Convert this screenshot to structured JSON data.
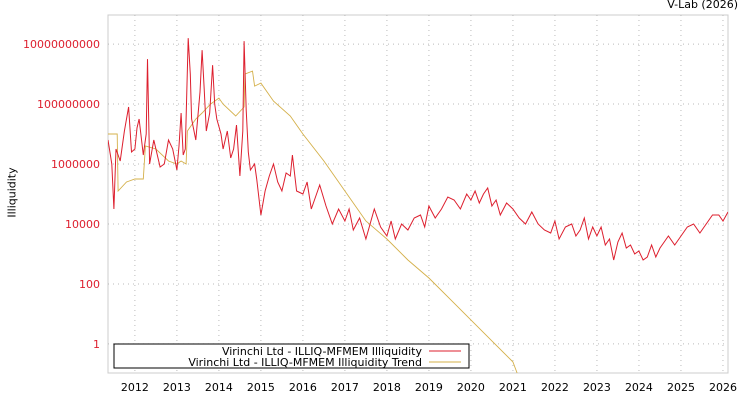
{
  "credit": "V-Lab (2026)",
  "chart_data": {
    "type": "line",
    "title": "",
    "xlabel": "",
    "ylabel": "Illiquidity",
    "yscale": "log",
    "xlim": [
      2011.36,
      2026.12
    ],
    "ylim_log10": [
      -0.97,
      10.97
    ],
    "grid": true,
    "legend_position": "bottom-left",
    "x_ticks": [
      "2012",
      "2013",
      "2014",
      "2015",
      "2016",
      "2017",
      "2018",
      "2019",
      "2020",
      "2021",
      "2022",
      "2023",
      "2024",
      "2025",
      "2026"
    ],
    "y_ticks": [
      {
        "label": "10000000000",
        "log10": 10
      },
      {
        "label": "100000000",
        "log10": 8
      },
      {
        "label": "1000000",
        "log10": 6
      },
      {
        "label": "10000",
        "log10": 4
      },
      {
        "label": "100",
        "log10": 2
      },
      {
        "label": "1",
        "log10": 0
      }
    ],
    "series": [
      {
        "name": "Virinchi Ltd - ILLIQ-MFMEM Illiquidity",
        "color": "#dd1f2e",
        "points_year_log10": [
          [
            2011.36,
            6.8
          ],
          [
            2011.45,
            6.0
          ],
          [
            2011.5,
            4.5
          ],
          [
            2011.55,
            6.5
          ],
          [
            2011.65,
            6.1
          ],
          [
            2011.75,
            7.1
          ],
          [
            2011.85,
            7.9
          ],
          [
            2011.92,
            6.4
          ],
          [
            2012.0,
            6.5
          ],
          [
            2012.05,
            7.2
          ],
          [
            2012.1,
            7.5
          ],
          [
            2012.2,
            6.3
          ],
          [
            2012.27,
            7.0
          ],
          [
            2012.3,
            9.5
          ],
          [
            2012.35,
            6.0
          ],
          [
            2012.45,
            6.8
          ],
          [
            2012.5,
            6.5
          ],
          [
            2012.6,
            5.9
          ],
          [
            2012.7,
            6.0
          ],
          [
            2012.8,
            6.8
          ],
          [
            2012.9,
            6.5
          ],
          [
            2013.0,
            5.8
          ],
          [
            2013.05,
            6.6
          ],
          [
            2013.1,
            7.7
          ],
          [
            2013.15,
            6.3
          ],
          [
            2013.2,
            6.5
          ],
          [
            2013.27,
            10.2
          ],
          [
            2013.32,
            9.0
          ],
          [
            2013.35,
            7.5
          ],
          [
            2013.45,
            6.8
          ],
          [
            2013.55,
            8.4
          ],
          [
            2013.6,
            9.8
          ],
          [
            2013.65,
            8.5
          ],
          [
            2013.7,
            7.1
          ],
          [
            2013.78,
            7.7
          ],
          [
            2013.85,
            9.3
          ],
          [
            2013.9,
            8.0
          ],
          [
            2013.95,
            7.5
          ],
          [
            2014.05,
            7.0
          ],
          [
            2014.1,
            6.5
          ],
          [
            2014.2,
            7.1
          ],
          [
            2014.28,
            6.2
          ],
          [
            2014.35,
            6.5
          ],
          [
            2014.42,
            7.3
          ],
          [
            2014.5,
            5.6
          ],
          [
            2014.57,
            7.1
          ],
          [
            2014.6,
            10.1
          ],
          [
            2014.65,
            7.8
          ],
          [
            2014.7,
            6.4
          ],
          [
            2014.75,
            5.8
          ],
          [
            2014.85,
            6.0
          ],
          [
            2014.9,
            5.5
          ],
          [
            2015.0,
            4.3
          ],
          [
            2015.1,
            5.1
          ],
          [
            2015.2,
            5.6
          ],
          [
            2015.3,
            6.0
          ],
          [
            2015.4,
            5.4
          ],
          [
            2015.5,
            5.1
          ],
          [
            2015.6,
            5.7
          ],
          [
            2015.7,
            5.6
          ],
          [
            2015.75,
            6.3
          ],
          [
            2015.85,
            5.1
          ],
          [
            2016.0,
            5.0
          ],
          [
            2016.1,
            5.4
          ],
          [
            2016.2,
            4.5
          ],
          [
            2016.3,
            4.9
          ],
          [
            2016.4,
            5.3
          ],
          [
            2016.55,
            4.6
          ],
          [
            2016.7,
            4.0
          ],
          [
            2016.85,
            4.5
          ],
          [
            2017.0,
            4.1
          ],
          [
            2017.1,
            4.5
          ],
          [
            2017.2,
            3.8
          ],
          [
            2017.35,
            4.2
          ],
          [
            2017.5,
            3.5
          ],
          [
            2017.6,
            4.0
          ],
          [
            2017.7,
            4.5
          ],
          [
            2017.85,
            3.9
          ],
          [
            2018.0,
            3.6
          ],
          [
            2018.1,
            4.1
          ],
          [
            2018.2,
            3.5
          ],
          [
            2018.35,
            4.0
          ],
          [
            2018.5,
            3.8
          ],
          [
            2018.65,
            4.2
          ],
          [
            2018.8,
            4.3
          ],
          [
            2018.9,
            3.9
          ],
          [
            2019.0,
            4.6
          ],
          [
            2019.15,
            4.2
          ],
          [
            2019.3,
            4.5
          ],
          [
            2019.45,
            4.9
          ],
          [
            2019.6,
            4.8
          ],
          [
            2019.75,
            4.5
          ],
          [
            2019.9,
            5.0
          ],
          [
            2020.0,
            4.8
          ],
          [
            2020.1,
            5.1
          ],
          [
            2020.2,
            4.7
          ],
          [
            2020.3,
            5.0
          ],
          [
            2020.4,
            5.2
          ],
          [
            2020.5,
            4.6
          ],
          [
            2020.6,
            4.8
          ],
          [
            2020.7,
            4.3
          ],
          [
            2020.85,
            4.7
          ],
          [
            2021.0,
            4.5
          ],
          [
            2021.15,
            4.2
          ],
          [
            2021.3,
            4.0
          ],
          [
            2021.45,
            4.4
          ],
          [
            2021.6,
            4.0
          ],
          [
            2021.75,
            3.8
          ],
          [
            2021.9,
            3.7
          ],
          [
            2022.0,
            4.1
          ],
          [
            2022.1,
            3.5
          ],
          [
            2022.25,
            3.9
          ],
          [
            2022.4,
            4.0
          ],
          [
            2022.5,
            3.6
          ],
          [
            2022.6,
            3.8
          ],
          [
            2022.7,
            4.2
          ],
          [
            2022.8,
            3.5
          ],
          [
            2022.9,
            3.9
          ],
          [
            2023.0,
            3.6
          ],
          [
            2023.1,
            3.9
          ],
          [
            2023.2,
            3.3
          ],
          [
            2023.3,
            3.5
          ],
          [
            2023.4,
            2.8
          ],
          [
            2023.5,
            3.4
          ],
          [
            2023.6,
            3.7
          ],
          [
            2023.7,
            3.2
          ],
          [
            2023.8,
            3.3
          ],
          [
            2023.9,
            3.0
          ],
          [
            2024.0,
            3.1
          ],
          [
            2024.1,
            2.8
          ],
          [
            2024.2,
            2.9
          ],
          [
            2024.3,
            3.3
          ],
          [
            2024.4,
            2.9
          ],
          [
            2024.5,
            3.2
          ],
          [
            2024.6,
            3.4
          ],
          [
            2024.7,
            3.6
          ],
          [
            2024.85,
            3.3
          ],
          [
            2025.0,
            3.6
          ],
          [
            2025.15,
            3.9
          ],
          [
            2025.3,
            4.0
          ],
          [
            2025.45,
            3.7
          ],
          [
            2025.6,
            4.0
          ],
          [
            2025.75,
            4.3
          ],
          [
            2025.9,
            4.3
          ],
          [
            2026.0,
            4.1
          ],
          [
            2026.12,
            4.4
          ]
        ]
      },
      {
        "name": "Virinchi Ltd - ILLIQ-MFMEM Illiquidity Trend",
        "color": "#d4b04a",
        "points_year_log10": [
          [
            2011.36,
            7.0
          ],
          [
            2011.58,
            7.0
          ],
          [
            2011.6,
            5.1
          ],
          [
            2011.8,
            5.4
          ],
          [
            2012.0,
            5.5
          ],
          [
            2012.2,
            5.5
          ],
          [
            2012.25,
            6.6
          ],
          [
            2012.5,
            6.5
          ],
          [
            2012.8,
            6.1
          ],
          [
            2013.0,
            6.0
          ],
          [
            2013.1,
            6.1
          ],
          [
            2013.22,
            6.0
          ],
          [
            2013.25,
            7.1
          ],
          [
            2013.45,
            7.5
          ],
          [
            2013.6,
            7.7
          ],
          [
            2013.8,
            8.0
          ],
          [
            2014.0,
            8.2
          ],
          [
            2014.1,
            8.0
          ],
          [
            2014.4,
            7.6
          ],
          [
            2014.6,
            7.9
          ],
          [
            2014.62,
            9.0
          ],
          [
            2014.8,
            9.1
          ],
          [
            2014.85,
            8.6
          ],
          [
            2015.0,
            8.7
          ],
          [
            2015.3,
            8.1
          ],
          [
            2015.7,
            7.6
          ],
          [
            2016.0,
            7.0
          ],
          [
            2016.5,
            6.1
          ],
          [
            2017.0,
            5.1
          ],
          [
            2017.5,
            4.1
          ],
          [
            2018.0,
            3.5
          ],
          [
            2018.5,
            2.8
          ],
          [
            2019.0,
            2.2
          ],
          [
            2019.5,
            1.5
          ],
          [
            2020.0,
            0.8
          ],
          [
            2020.5,
            0.1
          ],
          [
            2021.0,
            -0.6
          ],
          [
            2021.1,
            -0.97
          ]
        ]
      }
    ]
  }
}
